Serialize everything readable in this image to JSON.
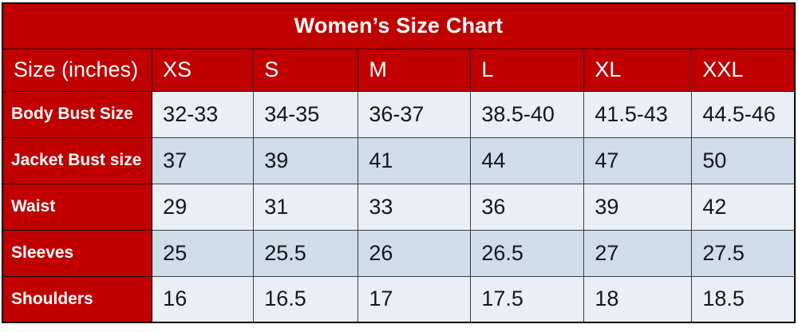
{
  "colors": {
    "header_red": "#c00000",
    "header_text": "#ffffff",
    "row_light": "#eaeff7",
    "row_dark": "#cfdcea",
    "value_text": "#161616",
    "border": "#000000"
  },
  "chart_data": {
    "type": "table",
    "title": "Women’s Size Chart",
    "corner_label": "Size (inches)",
    "columns": [
      "XS",
      "S",
      "M",
      "L",
      "XL",
      "XXL"
    ],
    "rows": [
      {
        "label": "Body Bust Size",
        "values": [
          "32-33",
          "34-35",
          "36-37",
          "38.5-40",
          "41.5-43",
          "44.5-46"
        ]
      },
      {
        "label": "Jacket Bust size",
        "values": [
          "37",
          "39",
          "41",
          "44",
          "47",
          "50"
        ]
      },
      {
        "label": "Waist",
        "values": [
          "29",
          "31",
          "33",
          "36",
          "39",
          "42"
        ]
      },
      {
        "label": "Sleeves",
        "values": [
          "25",
          "25.5",
          "26",
          "26.5",
          "27",
          "27.5"
        ]
      },
      {
        "label": "Shoulders",
        "values": [
          "16",
          "16.5",
          "17",
          "17.5",
          "18",
          "18.5"
        ]
      }
    ]
  }
}
